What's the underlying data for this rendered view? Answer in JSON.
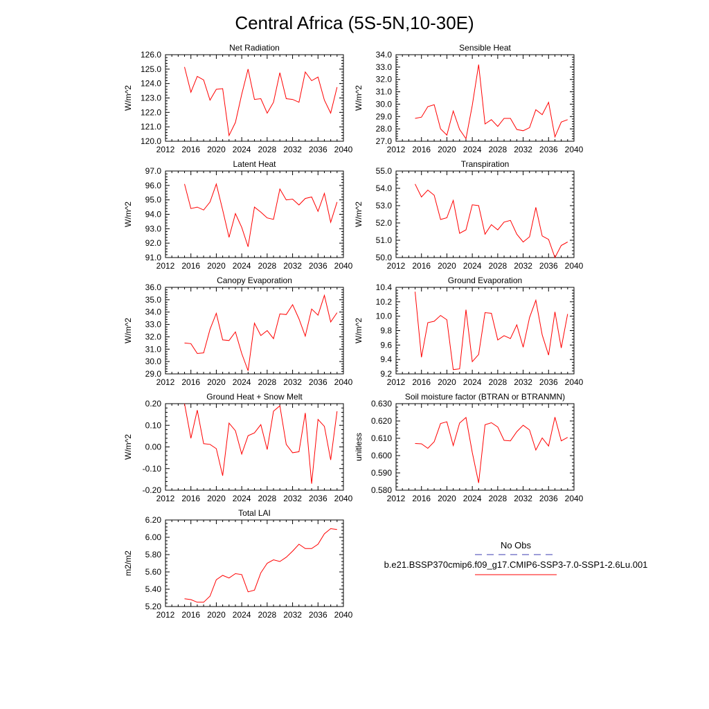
{
  "figure": {
    "title": "Central Africa (5S-5N,10-30E)",
    "line_color": "#ff0000",
    "obs_line_color": "#3b3bb0"
  },
  "legend": {
    "obs_label": "No Obs",
    "case_label": "b.e21.BSSP370cmip6.f09_g17.CMIP6-SSP3-7.0-SSP1-2.6Lu.001"
  },
  "chart_data": [
    {
      "type": "line",
      "title": "Net Radiation",
      "ylabel": "W/m^2",
      "xlim": [
        2012,
        2040
      ],
      "ylim": [
        120.0,
        126.0
      ],
      "xticks": [
        2012,
        2016,
        2020,
        2024,
        2028,
        2032,
        2036,
        2040
      ],
      "xtick_labels": [
        "2012",
        "2016",
        "2020",
        "2024",
        "2028",
        "2032",
        "2036",
        "2040"
      ],
      "yticks": [
        120,
        121,
        122,
        123,
        124,
        125,
        126
      ],
      "ytick_labels": [
        "120.0",
        "121.0",
        "122.0",
        "123.0",
        "124.0",
        "125.0",
        "126.0"
      ],
      "x": [
        2015,
        2016,
        2017,
        2018,
        2019,
        2020,
        2021,
        2022,
        2023,
        2024,
        2025,
        2026,
        2027,
        2028,
        2029,
        2030,
        2031,
        2032,
        2033,
        2034,
        2035,
        2036,
        2037,
        2038,
        2039
      ],
      "values": [
        125.15,
        123.4,
        124.5,
        124.25,
        122.85,
        123.6,
        123.65,
        120.4,
        121.3,
        123.25,
        125.0,
        122.9,
        122.95,
        121.95,
        122.7,
        124.75,
        122.95,
        122.9,
        122.7,
        124.8,
        124.2,
        124.45,
        122.85,
        121.95,
        123.75
      ]
    },
    {
      "type": "line",
      "title": "Sensible Heat",
      "ylabel": "W/m^2",
      "xlim": [
        2012,
        2040
      ],
      "ylim": [
        27.0,
        34.0
      ],
      "xticks": [
        2012,
        2016,
        2020,
        2024,
        2028,
        2032,
        2036,
        2040
      ],
      "xtick_labels": [
        "2012",
        "2016",
        "2020",
        "2024",
        "2028",
        "2032",
        "2036",
        "2040"
      ],
      "yticks": [
        27,
        28,
        29,
        30,
        31,
        32,
        33,
        34
      ],
      "ytick_labels": [
        "27.0",
        "28.0",
        "29.0",
        "30.0",
        "31.0",
        "32.0",
        "33.0",
        "34.0"
      ],
      "x": [
        2015,
        2016,
        2017,
        2018,
        2019,
        2020,
        2021,
        2022,
        2023,
        2024,
        2025,
        2026,
        2027,
        2028,
        2029,
        2030,
        2031,
        2032,
        2033,
        2034,
        2035,
        2036,
        2037,
        2038,
        2039
      ],
      "values": [
        28.85,
        28.95,
        29.8,
        29.95,
        28.0,
        27.5,
        29.45,
        27.95,
        27.2,
        29.9,
        33.2,
        28.4,
        28.75,
        28.2,
        28.85,
        28.85,
        27.95,
        27.85,
        28.1,
        29.55,
        29.15,
        30.15,
        27.35,
        28.55,
        28.75
      ]
    },
    {
      "type": "line",
      "title": "Latent Heat",
      "ylabel": "W/m^2",
      "xlim": [
        2012,
        2040
      ],
      "ylim": [
        91.0,
        97.0
      ],
      "xticks": [
        2012,
        2016,
        2020,
        2024,
        2028,
        2032,
        2036,
        2040
      ],
      "xtick_labels": [
        "2012",
        "2016",
        "2020",
        "2024",
        "2028",
        "2032",
        "2036",
        "2040"
      ],
      "yticks": [
        91,
        92,
        93,
        94,
        95,
        96,
        97
      ],
      "ytick_labels": [
        "91.0",
        "92.0",
        "93.0",
        "94.0",
        "95.0",
        "96.0",
        "97.0"
      ],
      "x": [
        2015,
        2016,
        2017,
        2018,
        2019,
        2020,
        2021,
        2022,
        2023,
        2024,
        2025,
        2026,
        2027,
        2028,
        2029,
        2030,
        2031,
        2032,
        2033,
        2034,
        2035,
        2036,
        2037,
        2038,
        2039
      ],
      "values": [
        96.1,
        94.4,
        94.5,
        94.3,
        94.85,
        96.1,
        94.3,
        92.4,
        94.05,
        93.1,
        91.75,
        94.5,
        94.15,
        93.75,
        93.65,
        95.75,
        95.0,
        95.05,
        94.65,
        95.1,
        95.2,
        94.2,
        95.45,
        93.45,
        94.85
      ]
    },
    {
      "type": "line",
      "title": "Transpiration",
      "ylabel": "W/m^2",
      "xlim": [
        2012,
        2040
      ],
      "ylim": [
        50.0,
        55.0
      ],
      "xticks": [
        2012,
        2016,
        2020,
        2024,
        2028,
        2032,
        2036,
        2040
      ],
      "xtick_labels": [
        "2012",
        "2016",
        "2020",
        "2024",
        "2028",
        "2032",
        "2036",
        "2040"
      ],
      "yticks": [
        50,
        51,
        52,
        53,
        54,
        55
      ],
      "ytick_labels": [
        "50.0",
        "51.0",
        "52.0",
        "53.0",
        "54.0",
        "55.0"
      ],
      "x": [
        2015,
        2016,
        2017,
        2018,
        2019,
        2020,
        2021,
        2022,
        2023,
        2024,
        2025,
        2026,
        2027,
        2028,
        2029,
        2030,
        2031,
        2032,
        2033,
        2034,
        2035,
        2036,
        2037,
        2038,
        2039
      ],
      "values": [
        54.25,
        53.5,
        53.9,
        53.6,
        52.2,
        52.3,
        53.3,
        51.4,
        51.6,
        53.05,
        53.0,
        51.35,
        51.9,
        51.6,
        52.05,
        52.15,
        51.35,
        50.9,
        51.2,
        52.9,
        51.25,
        51.05,
        50.0,
        50.7,
        50.9
      ]
    },
    {
      "type": "line",
      "title": "Canopy Evaporation",
      "ylabel": "W/m^2",
      "xlim": [
        2012,
        2040
      ],
      "ylim": [
        29.0,
        36.0
      ],
      "xticks": [
        2012,
        2016,
        2020,
        2024,
        2028,
        2032,
        2036,
        2040
      ],
      "xtick_labels": [
        "2012",
        "2016",
        "2020",
        "2024",
        "2028",
        "2032",
        "2036",
        "2040"
      ],
      "yticks": [
        29,
        30,
        31,
        32,
        33,
        34,
        35,
        36
      ],
      "ytick_labels": [
        "29.0",
        "30.0",
        "31.0",
        "32.0",
        "33.0",
        "34.0",
        "35.0",
        "36.0"
      ],
      "x": [
        2015,
        2016,
        2017,
        2018,
        2019,
        2020,
        2021,
        2022,
        2023,
        2024,
        2025,
        2026,
        2027,
        2028,
        2029,
        2030,
        2031,
        2032,
        2033,
        2034,
        2035,
        2036,
        2037,
        2038,
        2039
      ],
      "values": [
        31.5,
        31.45,
        30.65,
        30.7,
        32.6,
        33.9,
        31.75,
        31.7,
        32.4,
        30.65,
        29.25,
        33.1,
        32.1,
        32.5,
        31.85,
        33.85,
        33.8,
        34.6,
        33.45,
        32.05,
        34.25,
        33.75,
        35.35,
        33.2,
        33.95
      ]
    },
    {
      "type": "line",
      "title": "Ground Evaporation",
      "ylabel": "W/m^2",
      "xlim": [
        2012,
        2040
      ],
      "ylim": [
        9.2,
        10.4
      ],
      "xticks": [
        2012,
        2016,
        2020,
        2024,
        2028,
        2032,
        2036,
        2040
      ],
      "xtick_labels": [
        "2012",
        "2016",
        "2020",
        "2024",
        "2028",
        "2032",
        "2036",
        "2040"
      ],
      "yticks": [
        9.2,
        9.4,
        9.6,
        9.8,
        10.0,
        10.2,
        10.4
      ],
      "ytick_labels": [
        "9.2",
        "9.4",
        "9.6",
        "9.8",
        "10.0",
        "10.2",
        "10.4"
      ],
      "x": [
        2015,
        2016,
        2017,
        2018,
        2019,
        2020,
        2021,
        2022,
        2023,
        2024,
        2025,
        2026,
        2027,
        2028,
        2029,
        2030,
        2031,
        2032,
        2033,
        2034,
        2035,
        2036,
        2037,
        2038,
        2039
      ],
      "values": [
        10.34,
        9.43,
        9.91,
        9.93,
        10.01,
        9.95,
        9.26,
        9.27,
        10.09,
        9.37,
        9.47,
        10.05,
        10.04,
        9.67,
        9.73,
        9.69,
        9.88,
        9.57,
        9.98,
        10.22,
        9.74,
        9.46,
        10.06,
        9.56,
        10.03
      ]
    },
    {
      "type": "line",
      "title": "Ground Heat + Snow Melt",
      "ylabel": "W/m^2",
      "xlim": [
        2012,
        2040
      ],
      "ylim": [
        -0.2,
        0.2
      ],
      "xticks": [
        2012,
        2016,
        2020,
        2024,
        2028,
        2032,
        2036,
        2040
      ],
      "xtick_labels": [
        "2012",
        "2016",
        "2020",
        "2024",
        "2028",
        "2032",
        "2036",
        "2040"
      ],
      "yticks": [
        -0.2,
        -0.1,
        0.0,
        0.1,
        0.2
      ],
      "ytick_labels": [
        "-0.20",
        "-0.10",
        "0.00",
        "0.10",
        "0.20"
      ],
      "x": [
        2015,
        2016,
        2017,
        2018,
        2019,
        2020,
        2021,
        2022,
        2023,
        2024,
        2025,
        2026,
        2027,
        2028,
        2029,
        2030,
        2031,
        2032,
        2033,
        2034,
        2035,
        2036,
        2037,
        2038,
        2039
      ],
      "values": [
        0.2,
        0.04,
        0.17,
        0.015,
        0.012,
        -0.008,
        -0.133,
        0.11,
        0.075,
        -0.033,
        0.052,
        0.065,
        0.103,
        -0.012,
        0.165,
        0.19,
        0.012,
        -0.027,
        -0.022,
        0.157,
        -0.17,
        0.127,
        0.095,
        -0.06,
        0.165
      ]
    },
    {
      "type": "line",
      "title": "Soil moisture factor (BTRAN or BTRANMN)",
      "ylabel": "unitless",
      "xlim": [
        2012,
        2040
      ],
      "ylim": [
        0.58,
        0.63
      ],
      "xticks": [
        2012,
        2016,
        2020,
        2024,
        2028,
        2032,
        2036,
        2040
      ],
      "xtick_labels": [
        "2012",
        "2016",
        "2020",
        "2024",
        "2028",
        "2032",
        "2036",
        "2040"
      ],
      "yticks": [
        0.58,
        0.59,
        0.6,
        0.61,
        0.62,
        0.63
      ],
      "ytick_labels": [
        "0.580",
        "0.590",
        "0.600",
        "0.610",
        "0.620",
        "0.630"
      ],
      "x": [
        2015,
        2016,
        2017,
        2018,
        2019,
        2020,
        2021,
        2022,
        2023,
        2024,
        2025,
        2026,
        2027,
        2028,
        2029,
        2030,
        2031,
        2032,
        2033,
        2034,
        2035,
        2036,
        2037,
        2038,
        2039
      ],
      "values": [
        0.607,
        0.6068,
        0.6042,
        0.608,
        0.6185,
        0.6195,
        0.6058,
        0.6188,
        0.622,
        0.6018,
        0.5842,
        0.6178,
        0.619,
        0.6165,
        0.6088,
        0.6085,
        0.6138,
        0.6175,
        0.6148,
        0.6032,
        0.6102,
        0.6055,
        0.6222,
        0.6085,
        0.6105
      ]
    },
    {
      "type": "line",
      "title": "Total LAI",
      "ylabel": "m2/m2",
      "xlim": [
        2012,
        2040
      ],
      "ylim": [
        5.2,
        6.2
      ],
      "xticks": [
        2012,
        2016,
        2020,
        2024,
        2028,
        2032,
        2036,
        2040
      ],
      "xtick_labels": [
        "2012",
        "2016",
        "2020",
        "2024",
        "2028",
        "2032",
        "2036",
        "2040"
      ],
      "yticks": [
        5.2,
        5.4,
        5.6,
        5.8,
        6.0,
        6.2
      ],
      "ytick_labels": [
        "5.20",
        "5.40",
        "5.60",
        "5.80",
        "6.00",
        "6.20"
      ],
      "x": [
        2015,
        2016,
        2017,
        2018,
        2019,
        2020,
        2021,
        2022,
        2023,
        2024,
        2025,
        2026,
        2027,
        2028,
        2029,
        2030,
        2031,
        2032,
        2033,
        2034,
        2035,
        2036,
        2037,
        2038,
        2039
      ],
      "values": [
        5.29,
        5.28,
        5.25,
        5.25,
        5.32,
        5.51,
        5.56,
        5.53,
        5.58,
        5.57,
        5.37,
        5.39,
        5.59,
        5.7,
        5.74,
        5.72,
        5.77,
        5.84,
        5.92,
        5.87,
        5.87,
        5.92,
        6.04,
        6.1,
        6.09
      ]
    }
  ]
}
